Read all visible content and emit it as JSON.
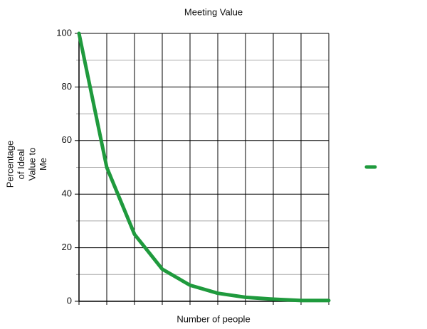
{
  "chart_data": {
    "type": "line",
    "title": "Meeting Value",
    "xlabel": "Number of people",
    "ylabel": [
      "Percentage",
      "of Ideal",
      "Value to",
      "Me"
    ],
    "categories": [
      null,
      null,
      null,
      null,
      null,
      null,
      null,
      null,
      null,
      null
    ],
    "series": [
      {
        "color": "#1f9a3d",
        "values": [
          100,
          50,
          25,
          12,
          6,
          3,
          1.5,
          0.8,
          0.3,
          0.3
        ]
      }
    ],
    "ylim": [
      0,
      100
    ],
    "yticks": [
      0,
      20,
      40,
      60,
      80,
      100
    ],
    "yminorticks": [
      10,
      30,
      50,
      70,
      90
    ],
    "grid": true
  }
}
